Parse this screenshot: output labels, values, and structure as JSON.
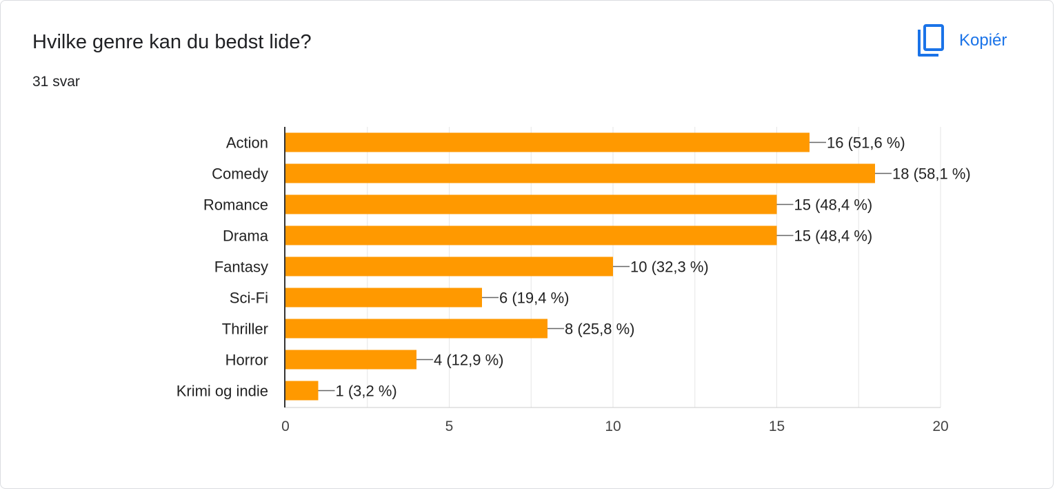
{
  "header": {
    "title": "Hvilke genre kan du bedst lide?",
    "response_count": "31 svar",
    "copy_label": "Kopiér",
    "copy_icon": "copy-icon"
  },
  "colors": {
    "bar": "#ff9900",
    "accent": "#1a73e8",
    "grid": "#e6e6e6",
    "text": "#222222"
  },
  "chart_data": {
    "type": "bar",
    "orientation": "horizontal",
    "categories": [
      "Action",
      "Comedy",
      "Romance",
      "Drama",
      "Fantasy",
      "Sci-Fi",
      "Thriller",
      "Horror",
      "Krimi og indie"
    ],
    "values": [
      16,
      18,
      15,
      15,
      10,
      6,
      8,
      4,
      1
    ],
    "value_labels": [
      "16 (51,6 %)",
      "18 (58,1 %)",
      "15 (48,4 %)",
      "15 (48,4 %)",
      "10 (32,3 %)",
      "6 (19,4 %)",
      "8 (25,8 %)",
      "4 (12,9 %)",
      "1 (3,2 %)"
    ],
    "xlim": [
      0,
      20
    ],
    "xticks": [
      0,
      5,
      10,
      15,
      20
    ],
    "xtick_labels": [
      "0",
      "5",
      "10",
      "15",
      "20"
    ],
    "minor_grid_step": 2.5,
    "grid": true,
    "title": "",
    "xlabel": "",
    "ylabel": ""
  }
}
